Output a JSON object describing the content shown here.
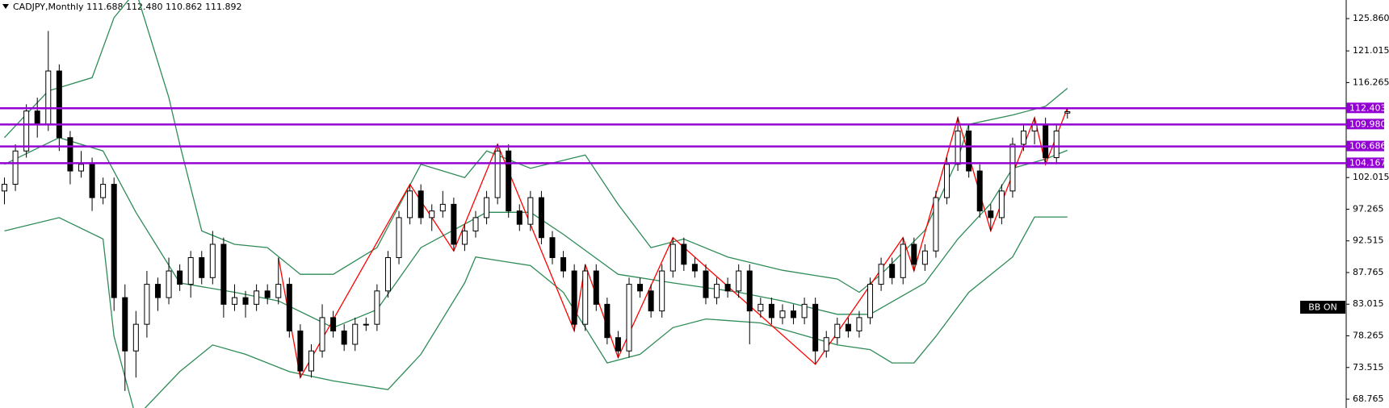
{
  "chart_data": {
    "type": "candlestick",
    "title": "CADJPY,Monthly 111.688 112.480 110.862 111.892",
    "button_label": "BB ON",
    "up_color": "#ffffff",
    "down_color": "#000000",
    "open": [
      100,
      101,
      106,
      112,
      110,
      118,
      108,
      103,
      104,
      99,
      101,
      84,
      76,
      80,
      86,
      84,
      88,
      86,
      90,
      87,
      92,
      83,
      84,
      83,
      85,
      84,
      86,
      79,
      73,
      76,
      81,
      79,
      77,
      80,
      80,
      85,
      90,
      96,
      100,
      96,
      97,
      98,
      92,
      94,
      96,
      99,
      106,
      97,
      95,
      99,
      93,
      90,
      88,
      80,
      88,
      83,
      78,
      76,
      86,
      85,
      82,
      88,
      92,
      89,
      88,
      84,
      86,
      85,
      88,
      82,
      83,
      81,
      82,
      81,
      83,
      76,
      78,
      80,
      79,
      81,
      86,
      89,
      87,
      92,
      89,
      91,
      99,
      104,
      109,
      103,
      97,
      96,
      100,
      107,
      109,
      110,
      105,
      111.688
    ],
    "high": [
      102,
      107,
      113,
      114,
      124,
      119,
      109,
      106,
      105,
      102,
      102,
      86,
      82,
      88,
      87,
      90,
      89,
      91,
      91,
      94,
      93,
      86,
      85,
      86,
      86,
      90,
      87,
      80,
      77,
      83,
      82,
      80,
      81,
      81,
      86,
      91,
      97,
      101,
      101,
      98,
      100,
      99,
      95,
      97,
      100,
      107,
      107,
      98,
      100,
      100,
      94,
      91,
      89,
      89,
      89,
      84,
      79,
      87,
      87,
      86,
      89,
      93,
      93,
      90,
      89,
      87,
      87,
      89,
      89,
      84,
      84,
      83,
      83,
      84,
      84,
      79,
      81,
      81,
      82,
      87,
      90,
      90,
      93,
      93,
      92,
      100,
      105,
      111,
      110,
      104,
      98,
      101,
      108,
      110,
      111,
      111,
      110,
      112.48
    ],
    "low": [
      98,
      100,
      105,
      108,
      109,
      106,
      101,
      102,
      97,
      98,
      82,
      70,
      72,
      78,
      82,
      83,
      85,
      84,
      86,
      86,
      81,
      82,
      81,
      82,
      83,
      83,
      78,
      72,
      72,
      75,
      78,
      76,
      76,
      79,
      79,
      84,
      89,
      95,
      95,
      94,
      96,
      91,
      91,
      93,
      95,
      98,
      96,
      94,
      94,
      92,
      89,
      87,
      79,
      79,
      82,
      77,
      75,
      75,
      84,
      81,
      81,
      87,
      88,
      87,
      83,
      83,
      84,
      84,
      77,
      81,
      80,
      80,
      80,
      80,
      74,
      75,
      77,
      78,
      78,
      80,
      85,
      86,
      86,
      88,
      88,
      90,
      98,
      103,
      102,
      96,
      94,
      95,
      99,
      106,
      107,
      104,
      104,
      110.862
    ],
    "close": [
      101,
      106,
      112,
      110,
      118,
      108,
      103,
      104,
      99,
      101,
      84,
      76,
      80,
      86,
      84,
      88,
      86,
      90,
      87,
      92,
      83,
      84,
      83,
      85,
      84,
      86,
      79,
      73,
      76,
      81,
      79,
      77,
      80,
      80,
      85,
      90,
      96,
      100,
      96,
      97,
      98,
      92,
      94,
      96,
      99,
      106,
      97,
      95,
      99,
      93,
      90,
      88,
      80,
      88,
      83,
      78,
      76,
      86,
      85,
      82,
      88,
      92,
      89,
      88,
      84,
      86,
      85,
      88,
      82,
      83,
      81,
      82,
      81,
      83,
      76,
      78,
      80,
      79,
      81,
      86,
      89,
      87,
      92,
      89,
      91,
      99,
      104,
      109,
      103,
      97,
      96,
      100,
      107,
      109,
      110,
      105,
      109,
      111.892
    ],
    "overlays": [
      {
        "color": "#2e8b57",
        "x": [
          0,
          4,
          8,
          10,
          12,
          15,
          16,
          18,
          21,
          24,
          27,
          30,
          34,
          38,
          42,
          44,
          48,
          53,
          56,
          59,
          62,
          66,
          71,
          76,
          78,
          80,
          84,
          87,
          88,
          92,
          95,
          97
        ],
        "values": [
          108,
          115,
          117,
          126,
          130,
          114,
          107,
          94,
          92,
          91.5,
          87.5,
          87.5,
          91.5,
          104,
          102,
          106,
          103.4,
          105.4,
          98,
          91.5,
          92.8,
          90.1,
          88.1,
          86.8,
          84.8,
          87.5,
          94.1,
          104.8,
          110,
          111.4,
          112.7,
          115.4
        ]
      },
      {
        "color": "#2e8b57",
        "x": [
          0,
          5,
          9,
          12,
          16,
          21,
          25,
          30,
          34,
          38,
          44,
          48,
          51,
          56,
          61,
          67,
          71,
          76,
          79,
          84,
          87,
          90,
          92,
          95,
          97
        ],
        "values": [
          104,
          108,
          106,
          96.8,
          86.2,
          84.8,
          83.5,
          79.5,
          82.2,
          91.5,
          96.8,
          96.8,
          93.5,
          87.5,
          86.2,
          84.8,
          83.5,
          81.5,
          81.5,
          86.2,
          92.8,
          98.1,
          103.4,
          104.8,
          106.1
        ]
      },
      {
        "color": "#2e8b57",
        "x": [
          0,
          5,
          9,
          10,
          12,
          16,
          19,
          22,
          26,
          30,
          35,
          38,
          42,
          43,
          48,
          51,
          55,
          58,
          61,
          64,
          69,
          76,
          79,
          81,
          83,
          85,
          88,
          92,
          94,
          97
        ],
        "values": [
          94,
          96,
          92.8,
          78.2,
          66,
          72.9,
          76.9,
          75.5,
          72.9,
          71.5,
          70.2,
          75.5,
          86.2,
          90.1,
          88.8,
          84.8,
          74.2,
          75.5,
          79.5,
          80.8,
          80.2,
          76.9,
          76.2,
          74.2,
          74.2,
          78.2,
          84.8,
          90.1,
          96.1,
          96.1
        ]
      },
      {
        "color": "#ff0000",
        "x": [
          25,
          27,
          37,
          41,
          45,
          52,
          53,
          56,
          61,
          74,
          82,
          83,
          87,
          90,
          94,
          95,
          97
        ],
        "values": [
          90,
          72,
          101,
          91,
          107,
          79,
          89,
          75,
          93,
          74,
          93,
          88,
          111,
          94,
          111,
          104,
          112.48
        ]
      }
    ],
    "level_color": "#9400d3",
    "levels": [
      112.403,
      {
        "value": 109.98,
        "label": "109.980"
      },
      106.686,
      104.167
    ],
    "ylim": [
      67.44,
      128.65
    ],
    "yticks": [
      {
        "value": 125.86,
        "label": "125.860"
      },
      121.015,
      116.265,
      102.015,
      97.265,
      92.515,
      87.765,
      83.015,
      78.265,
      73.515,
      68.765
    ]
  }
}
